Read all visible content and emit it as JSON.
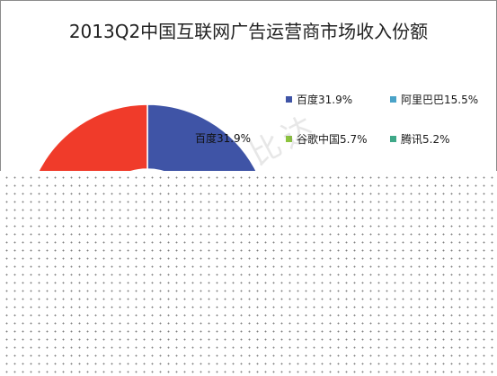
{
  "chart_data": {
    "type": "pie",
    "variant": "donut",
    "title": "2013Q2中国互联网广告运营商市场收入份额",
    "series": [
      {
        "name": "百度",
        "value": 31.9,
        "legend": "百度31.9%",
        "color": "#3f54a6"
      },
      {
        "name": "阿里巴巴",
        "value": 15.5,
        "legend": "阿里巴巴15.5%",
        "color": "#4aa3c8"
      },
      {
        "name": "谷歌中国",
        "value": 5.7,
        "legend": "谷歌中国5.7%",
        "color": "#8cc43e"
      },
      {
        "name": "腾讯",
        "value": 5.2,
        "legend": "腾讯5.2%",
        "color": "#3fa888"
      },
      {
        "name": "",
        "value": 41.7,
        "color": "#f03b2a"
      }
    ],
    "data_labels": [
      "百度31.9%"
    ],
    "legend_position": "right"
  },
  "watermark": "比达",
  "occluded_region": "dot-pattern"
}
